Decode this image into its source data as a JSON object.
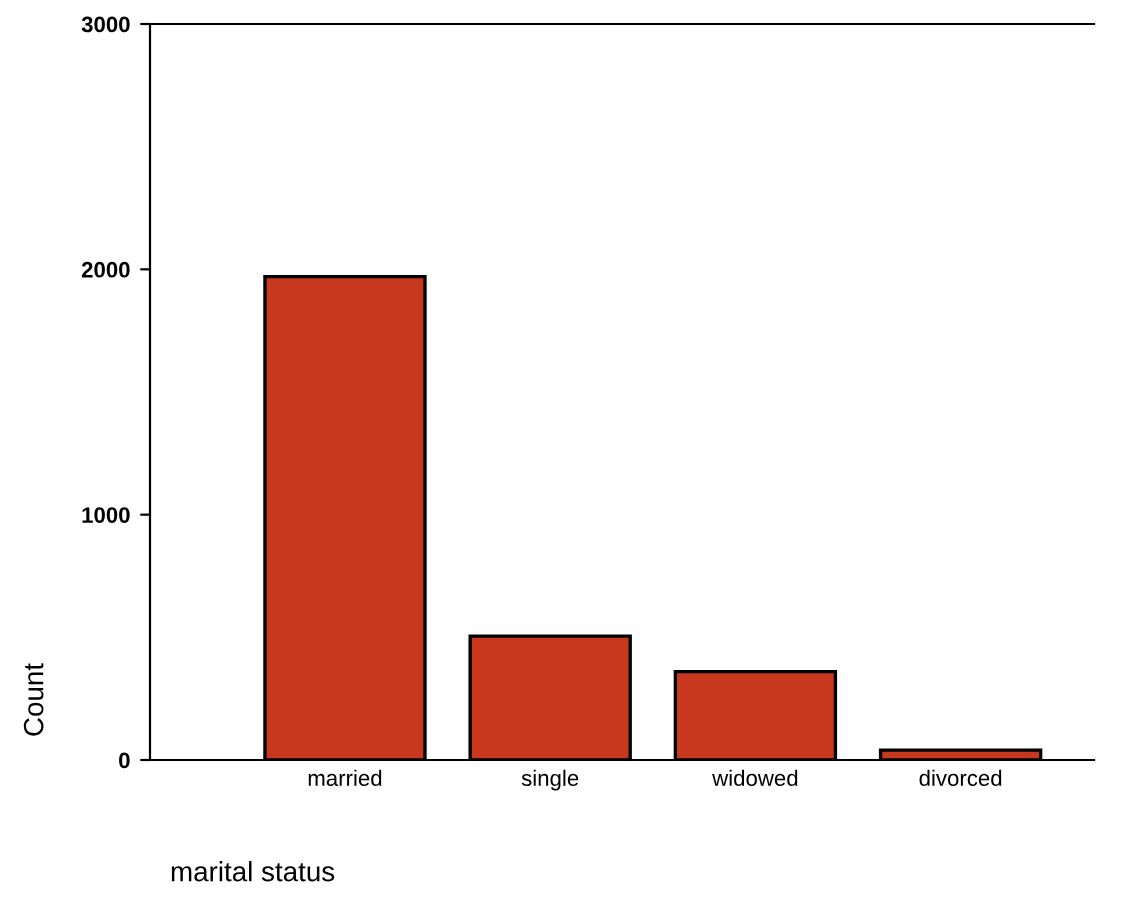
{
  "chart_data": {
    "type": "bar",
    "xlabel": "marital status",
    "ylabel": "Count",
    "categories": [
      "married",
      "single",
      "widowed",
      "divorced"
    ],
    "values": [
      1970,
      505,
      360,
      40
    ],
    "color": "#c8381f",
    "ylim": [
      0,
      3000
    ],
    "yticks": [
      0,
      1000,
      2000,
      3000
    ],
    "grid": false,
    "legend": false
  }
}
